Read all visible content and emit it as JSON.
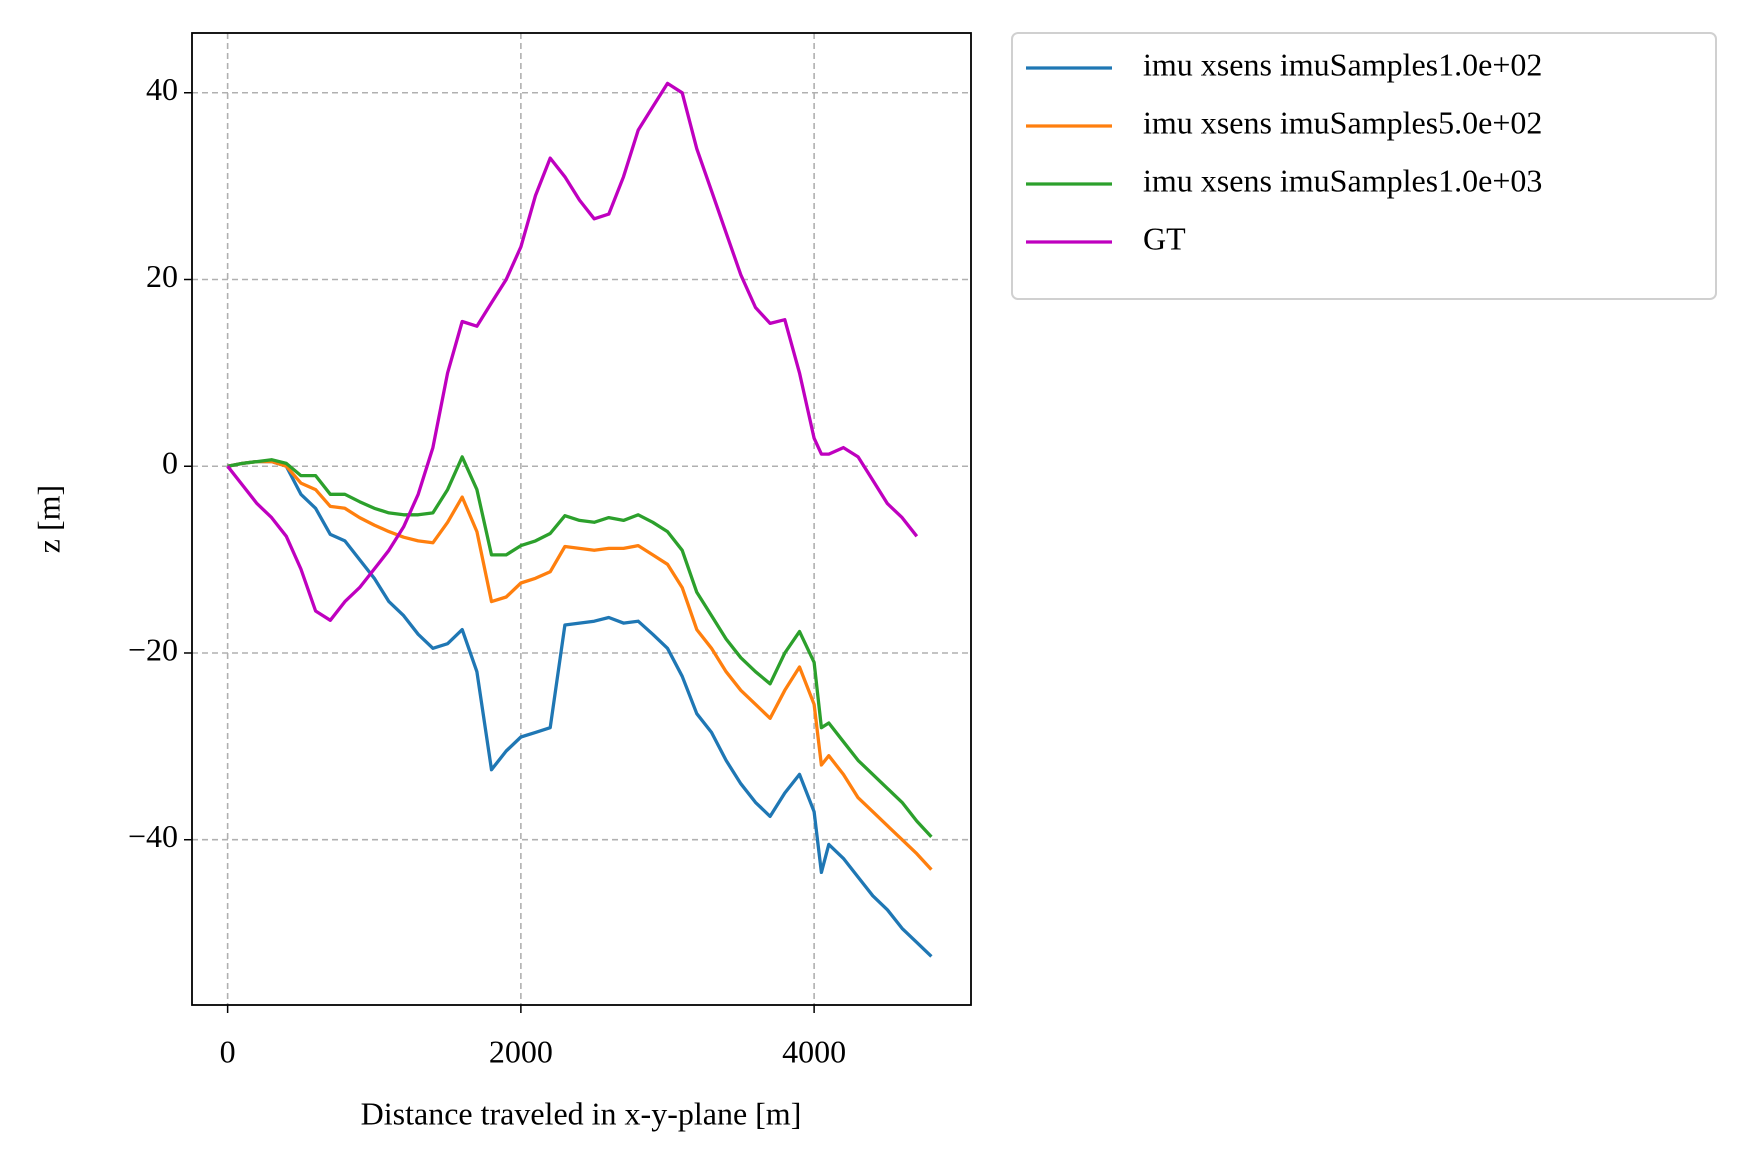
{
  "chart_data": {
    "type": "line",
    "x_label": "Distance traveled in x-y-plane [m]",
    "y_label": "z [m]",
    "x": [
      0,
      100,
      200,
      300,
      400,
      500,
      600,
      700,
      800,
      900,
      1000,
      1100,
      1200,
      1300,
      1400,
      1500,
      1600,
      1700,
      1800,
      1900,
      2000,
      2100,
      2200,
      2300,
      2400,
      2500,
      2600,
      2700,
      2800,
      2900,
      3000,
      3100,
      3200,
      3300,
      3400,
      3500,
      3600,
      3700,
      3800,
      3900,
      4000,
      4050,
      4100,
      4200,
      4300,
      4400,
      4500,
      4600,
      4700,
      4800
    ],
    "series": [
      {
        "name": "imu xsens imuSamples1.0e+02",
        "color": "#1f77b4",
        "values": [
          0,
          0.3,
          0.5,
          0.5,
          0,
          -3,
          -4.5,
          -7.3,
          -8,
          -10,
          -12,
          -14.5,
          -16,
          -18,
          -19.5,
          -19,
          -17.5,
          -22,
          -32.5,
          -30.5,
          -29,
          -28.5,
          -28,
          -17,
          -16.8,
          -16.6,
          -16.2,
          -16.8,
          -16.6,
          -18,
          -19.5,
          -22.5,
          -26.5,
          -28.5,
          -31.5,
          -34,
          -36,
          -37.5,
          -35,
          -33,
          -37,
          -43.5,
          -40.5,
          -42,
          -44,
          -46,
          -47.5,
          -49.5,
          -51,
          -52.5
        ]
      },
      {
        "name": "imu xsens imuSamples5.0e+02",
        "color": "#ff7f0e",
        "values": [
          0,
          0.3,
          0.5,
          0.5,
          0,
          -1.8,
          -2.5,
          -4.3,
          -4.5,
          -5.5,
          -6.3,
          -7,
          -7.6,
          -8,
          -8.2,
          -6,
          -3.3,
          -7,
          -14.5,
          -14,
          -12.5,
          -12,
          -11.3,
          -8.6,
          -8.8,
          -9,
          -8.8,
          -8.8,
          -8.5,
          -9.5,
          -10.5,
          -13,
          -17.5,
          -19.5,
          -22,
          -24,
          -25.5,
          -27,
          -24,
          -21.5,
          -25.5,
          -32,
          -31,
          -33,
          -35.5,
          -37,
          -38.5,
          -40,
          -41.5,
          -43.2
        ]
      },
      {
        "name": "imu xsens imuSamples1.0e+03",
        "color": "#2ca02c",
        "values": [
          0,
          0.3,
          0.5,
          0.7,
          0.3,
          -1,
          -1,
          -3,
          -3,
          -3.8,
          -4.5,
          -5,
          -5.2,
          -5.2,
          -5,
          -2.5,
          1,
          -2.5,
          -9.5,
          -9.5,
          -8.5,
          -8,
          -7.2,
          -5.3,
          -5.8,
          -6,
          -5.5,
          -5.8,
          -5.2,
          -6,
          -7,
          -9,
          -13.5,
          -16,
          -18.5,
          -20.5,
          -22,
          -23.3,
          -20,
          -17.7,
          -21,
          -28,
          -27.5,
          -29.5,
          -31.5,
          -33,
          -34.5,
          -36,
          -38,
          -39.7
        ]
      },
      {
        "name": "GT",
        "color": "#bf00bf",
        "values": [
          0,
          -2,
          -4,
          -5.5,
          -7.5,
          -11,
          -15.5,
          -16.5,
          -14.5,
          -13,
          -11,
          -9,
          -6.5,
          -3,
          2,
          10,
          15.5,
          15,
          17.5,
          20,
          23.5,
          29,
          33,
          31,
          28.5,
          26.5,
          27,
          31,
          36,
          38.5,
          41,
          40,
          34,
          29.5,
          25,
          20.5,
          17,
          15.3,
          15.7,
          10,
          3,
          1.3,
          1.3,
          2,
          1,
          -1.5,
          -4,
          -5.5,
          -7.5,
          null
        ]
      }
    ],
    "xlim": [
      -243,
      5070
    ],
    "ylim": [
      -57.7,
      46.4
    ],
    "xticks": [
      0,
      2000,
      4000
    ],
    "yticks": [
      {
        "value": -40,
        "label": "−40"
      },
      {
        "value": -20,
        "label": "−20"
      },
      0,
      20,
      40
    ],
    "grid": true,
    "legend": "outside upper right"
  }
}
